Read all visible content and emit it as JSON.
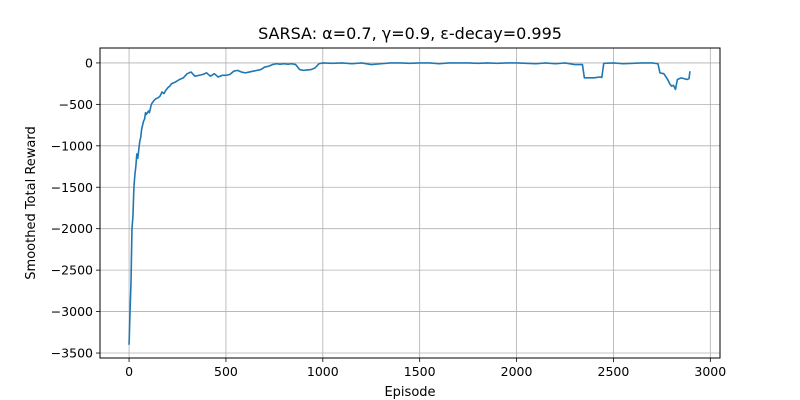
{
  "chart_data": {
    "type": "line",
    "title": "SARSA: α=0.7, γ=0.9, ε-decay=0.995",
    "xlabel": "Episode",
    "ylabel": "Smoothed Total Reward",
    "xlim": [
      -150,
      3050
    ],
    "ylim": [
      -3560,
      180
    ],
    "xticks": [
      0,
      500,
      1000,
      1500,
      2000,
      2500,
      3000
    ],
    "yticks": [
      0,
      -500,
      -1000,
      -1500,
      -2000,
      -2500,
      -3000,
      -3500
    ],
    "xtick_labels": [
      "0",
      "500",
      "1000",
      "1500",
      "2000",
      "2500",
      "3000"
    ],
    "ytick_labels": [
      "0",
      "−500",
      "−1000",
      "−1500",
      "−2000",
      "−2500",
      "−3000",
      "−3500"
    ],
    "grid": true,
    "color": "#1f77b4",
    "series": [
      {
        "x": [
          0,
          5,
          10,
          15,
          20,
          25,
          30,
          35,
          40,
          45,
          50,
          55,
          60,
          65,
          70,
          75,
          80,
          85,
          90,
          95,
          100,
          105,
          110,
          115,
          120,
          130,
          140,
          150,
          160,
          170,
          180,
          190,
          200,
          210,
          220,
          240,
          260,
          280,
          300,
          320,
          340,
          360,
          380,
          400,
          420,
          440,
          460,
          480,
          500,
          520,
          540,
          560,
          580,
          600,
          620,
          640,
          660,
          680,
          700,
          720,
          740,
          760,
          780,
          800,
          820,
          840,
          860,
          880,
          900,
          920,
          940,
          960,
          980,
          1000,
          1050,
          1100,
          1150,
          1200,
          1250,
          1300,
          1350,
          1400,
          1450,
          1500,
          1550,
          1600,
          1650,
          1700,
          1750,
          1800,
          1850,
          1900,
          1950,
          2000,
          2050,
          2100,
          2150,
          2200,
          2250,
          2300,
          2340,
          2350,
          2400,
          2430,
          2440,
          2450,
          2500,
          2550,
          2600,
          2650,
          2700,
          2730,
          2740,
          2760,
          2780,
          2790,
          2800,
          2810,
          2820,
          2830,
          2850,
          2880,
          2890,
          2895
        ],
        "y": [
          -3400,
          -3000,
          -2650,
          -2000,
          -1850,
          -1500,
          -1350,
          -1250,
          -1100,
          -1150,
          -1050,
          -950,
          -900,
          -800,
          -750,
          -700,
          -680,
          -600,
          -620,
          -600,
          -580,
          -600,
          -550,
          -500,
          -480,
          -450,
          -430,
          -420,
          -400,
          -350,
          -370,
          -330,
          -300,
          -280,
          -250,
          -230,
          -200,
          -180,
          -130,
          -110,
          -160,
          -150,
          -140,
          -120,
          -160,
          -130,
          -170,
          -150,
          -150,
          -140,
          -100,
          -90,
          -110,
          -120,
          -110,
          -100,
          -90,
          -80,
          -50,
          -40,
          -20,
          -10,
          -15,
          -10,
          -15,
          -10,
          -20,
          -80,
          -90,
          -85,
          -80,
          -60,
          -10,
          0,
          -5,
          0,
          -10,
          0,
          -20,
          -10,
          0,
          0,
          -5,
          0,
          0,
          -10,
          0,
          0,
          0,
          -5,
          0,
          -5,
          0,
          0,
          -5,
          -10,
          0,
          -10,
          0,
          -20,
          -20,
          -180,
          -180,
          -170,
          -175,
          -5,
          0,
          -10,
          -5,
          0,
          0,
          -10,
          -120,
          -130,
          -200,
          -250,
          -280,
          -270,
          -320,
          -200,
          -180,
          -200,
          -190,
          -100
        ]
      }
    ]
  }
}
